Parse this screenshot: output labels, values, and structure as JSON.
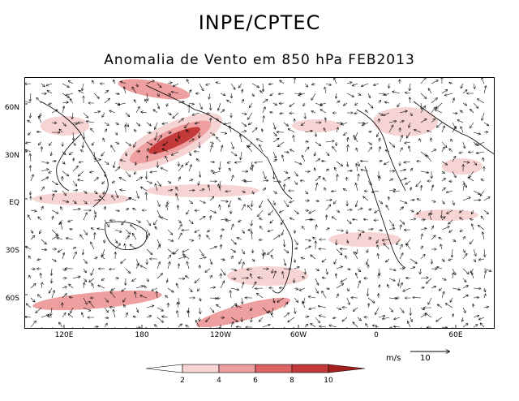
{
  "header": {
    "title": "INPE/CPTEC",
    "subtitle": "Anomalia de Vento em 850 hPa FEB2013"
  },
  "axes": {
    "lat_labels": [
      "60N",
      "30N",
      "EQ",
      "30S",
      "60S"
    ],
    "lon_labels": [
      "120E",
      "180",
      "120W",
      "60W",
      "0",
      "60E"
    ]
  },
  "legend": {
    "ticks": [
      "2",
      "4",
      "6",
      "8",
      "10"
    ],
    "colors": [
      "#ffffff",
      "#f7d4d4",
      "#ee9f9f",
      "#dc6464",
      "#c33a3a",
      "#a51f1f"
    ]
  },
  "vector_scale": {
    "units": "m/s",
    "value": "10"
  },
  "colors": {
    "land_line": "#000000",
    "shade_light": "#f7d4d4",
    "shade_mid": "#ee9f9f",
    "shade_dark": "#c33a3a"
  }
}
